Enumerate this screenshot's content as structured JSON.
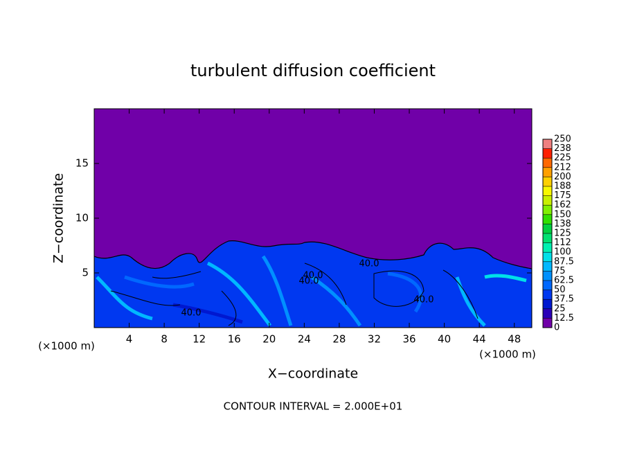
{
  "chart_data": {
    "type": "contour",
    "title": "turbulent diffusion coefficient",
    "xlabel": "X−coordinate",
    "ylabel": "Z−coordinate",
    "x_unit_label": "(×1000 m)",
    "footer": "CONTOUR INTERVAL = 2.000E+01",
    "xlim": [
      0,
      50
    ],
    "ylim": [
      0,
      20
    ],
    "xticks": [
      4,
      8,
      12,
      16,
      20,
      24,
      28,
      32,
      36,
      40,
      44,
      48
    ],
    "yticks": [
      5,
      10,
      15
    ],
    "contour_labels": [
      "40.0",
      "40.0",
      "40.0",
      "40.0",
      "40.0"
    ],
    "colorbar": {
      "lim": [
        0,
        250
      ],
      "ticks": [
        0,
        12.5,
        25,
        37.5,
        50,
        62.5,
        75,
        87.5,
        100,
        {
          "value": 112.5,
          "label": "112"
        },
        125,
        {
          "value": 137.5,
          "label": "138"
        },
        150,
        {
          "value": 162.5,
          "label": "162"
        },
        175,
        {
          "value": 187.5,
          "label": "188"
        },
        200,
        {
          "value": 212.5,
          "label": "212"
        },
        225,
        {
          "value": 237.5,
          "label": "238"
        },
        250
      ],
      "colors": [
        "#7000a8",
        "#2a00b8",
        "#0018d0",
        "#0038f0",
        "#0068ff",
        "#0090ff",
        "#00b8ff",
        "#00e0e8",
        "#00f0b0",
        "#00e070",
        "#00d040",
        "#30e000",
        "#80f000",
        "#c8f000",
        "#f8f800",
        "#ffd000",
        "#ffa000",
        "#ff6800",
        "#ff2000",
        "#f08080"
      ]
    }
  }
}
